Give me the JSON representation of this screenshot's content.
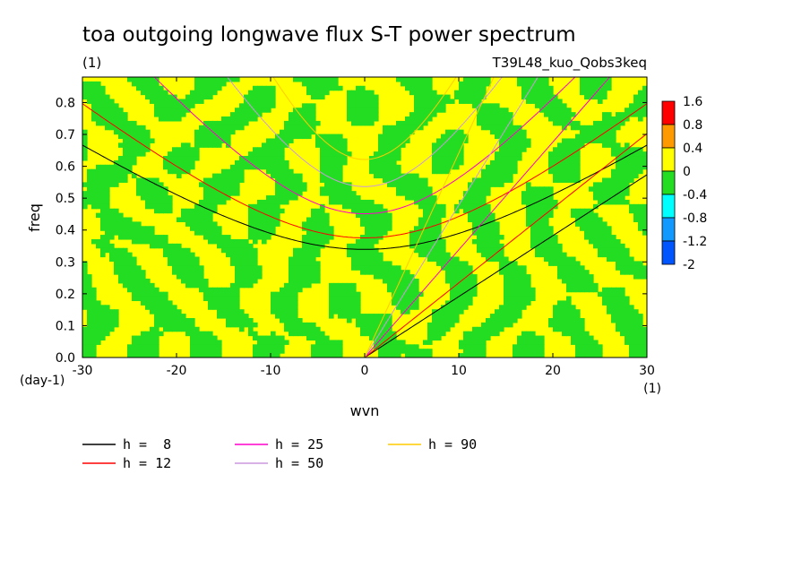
{
  "chart_data": {
    "type": "heatmap",
    "title": "toa outgoing longwave flux S-T power spectrum",
    "title_units": "(1)",
    "experiment": "T39L48_kuo_Qobs3keq",
    "xlabel": "wvn",
    "xunits": "(1)",
    "ylabel": "freq",
    "yunits": "(day-1)",
    "xlim": [
      -30,
      30
    ],
    "ylim": [
      0,
      0.88
    ],
    "xticks": [
      "-30",
      "-20",
      "-10",
      "0",
      "10",
      "20",
      "30"
    ],
    "yticks": [
      "0.0",
      "0.1",
      "0.2",
      "0.3",
      "0.4",
      "0.5",
      "0.6",
      "0.7",
      "0.8"
    ],
    "colorbar": {
      "labels": [
        "1.6",
        "0.8",
        "0.4",
        "0",
        "-0.4",
        "-0.8",
        "-1.2",
        "-2"
      ],
      "colors": [
        "#ff0000",
        "#ff9900",
        "#ffff00",
        "#22dd22",
        "#00ffff",
        "#1199ff",
        "#0055ff"
      ]
    },
    "field_note": "noise-like pattern dominated by two classes: 0 to 0.4 (yellow) and -0.4 to 0 (green)",
    "dispersion_curves": [
      {
        "name": "h =  8",
        "color": "#000000"
      },
      {
        "name": "h = 12",
        "color": "#ff0000"
      },
      {
        "name": "h = 25",
        "color": "#ff00cc"
      },
      {
        "name": "h = 50",
        "color": "#cc99dd"
      },
      {
        "name": "h = 90",
        "color": "#ffcc00"
      }
    ]
  }
}
